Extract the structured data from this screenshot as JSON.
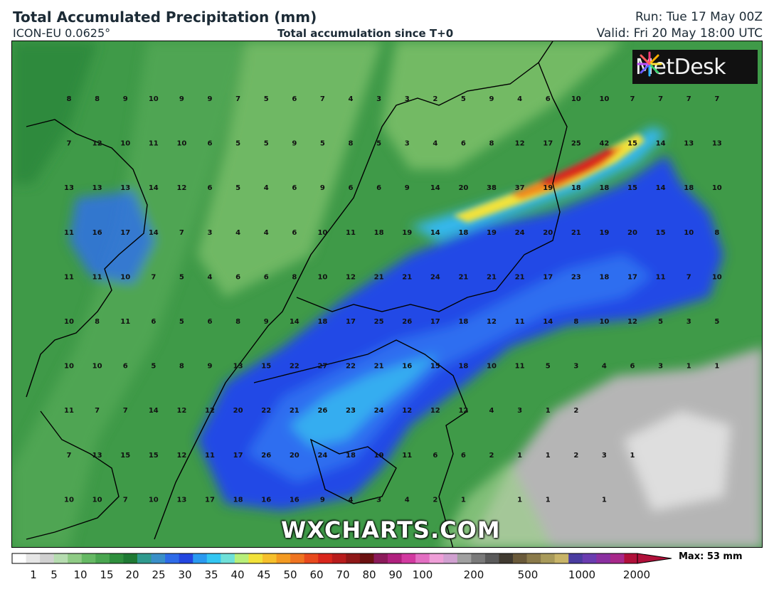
{
  "header": {
    "title": "Total Accumulated Precipitation (mm)",
    "model": "ICON-EU 0.0625°",
    "subtitle": "Total accumulation since T+0",
    "run": "Run: Tue 17 May 00Z",
    "valid": "Valid: Fri 20 May 18:00 UTC"
  },
  "branding": {
    "logo_text": "MetDesk",
    "watermark": "WXCHARTS.COM"
  },
  "legend": {
    "max_label": "Max: 53 mm",
    "ticks": [
      "1",
      "5",
      "10",
      "15",
      "20",
      "25",
      "30",
      "35",
      "40",
      "45",
      "50",
      "60",
      "70",
      "80",
      "90",
      "100",
      "200",
      "500",
      "1000",
      "2000"
    ]
  },
  "grid_values": [
    [
      "8",
      "8",
      "9",
      "10",
      "9",
      "9",
      "7",
      "5",
      "6",
      "7",
      "4",
      "3",
      "3",
      "2",
      "5",
      "9",
      "4",
      "6",
      "10",
      "10",
      "7",
      "7",
      "7",
      "7"
    ],
    [
      "7",
      "12",
      "10",
      "11",
      "10",
      "6",
      "5",
      "5",
      "9",
      "5",
      "8",
      "5",
      "3",
      "4",
      "6",
      "8",
      "12",
      "17",
      "25",
      "42",
      "15",
      "14",
      "13",
      "13"
    ],
    [
      "13",
      "13",
      "13",
      "14",
      "12",
      "6",
      "5",
      "4",
      "6",
      "9",
      "6",
      "6",
      "9",
      "14",
      "20",
      "38",
      "37",
      "19",
      "18",
      "18",
      "15",
      "14",
      "18",
      "10"
    ],
    [
      "11",
      "16",
      "17",
      "14",
      "7",
      "3",
      "4",
      "4",
      "6",
      "10",
      "11",
      "18",
      "19",
      "14",
      "18",
      "19",
      "24",
      "20",
      "21",
      "19",
      "20",
      "15",
      "10",
      "8"
    ],
    [
      "11",
      "11",
      "10",
      "7",
      "5",
      "4",
      "6",
      "6",
      "8",
      "10",
      "12",
      "21",
      "21",
      "24",
      "21",
      "21",
      "21",
      "17",
      "23",
      "18",
      "17",
      "11",
      "7",
      "10"
    ],
    [
      "10",
      "8",
      "11",
      "6",
      "5",
      "6",
      "8",
      "9",
      "14",
      "18",
      "17",
      "25",
      "26",
      "17",
      "18",
      "12",
      "11",
      "14",
      "8",
      "10",
      "12",
      "5",
      "3",
      "5"
    ],
    [
      "10",
      "10",
      "6",
      "5",
      "8",
      "9",
      "13",
      "15",
      "22",
      "27",
      "22",
      "21",
      "16",
      "15",
      "18",
      "10",
      "11",
      "5",
      "3",
      "4",
      "6",
      "3",
      "1",
      "1"
    ],
    [
      "11",
      "7",
      "7",
      "14",
      "12",
      "12",
      "20",
      "22",
      "21",
      "26",
      "23",
      "24",
      "12",
      "12",
      "12",
      "4",
      "3",
      "1",
      "2",
      "",
      "",
      "",
      "",
      ""
    ],
    [
      "7",
      "13",
      "15",
      "15",
      "12",
      "11",
      "17",
      "26",
      "20",
      "24",
      "18",
      "19",
      "11",
      "6",
      "6",
      "2",
      "1",
      "1",
      "2",
      "3",
      "1",
      "",
      "",
      ""
    ],
    [
      "10",
      "10",
      "7",
      "10",
      "13",
      "17",
      "18",
      "16",
      "16",
      "9",
      "4",
      "3",
      "4",
      "2",
      "1",
      "",
      "1",
      "1",
      "",
      "1",
      "",
      "",
      "",
      ""
    ]
  ],
  "colors": {
    "map_base": "#3f9a48",
    "green_light": "#7cbf6a",
    "green_mid": "#4fa552",
    "green_dark": "#2f8a3e",
    "grey_area": "#b5b5b5",
    "blue_deep": "#2448e6",
    "blue_mid": "#2f6ef0",
    "cyan": "#35b8f0",
    "yellow": "#f2e23a",
    "orange": "#f08a1e",
    "red": "#d9261c",
    "coast": "#000000"
  }
}
